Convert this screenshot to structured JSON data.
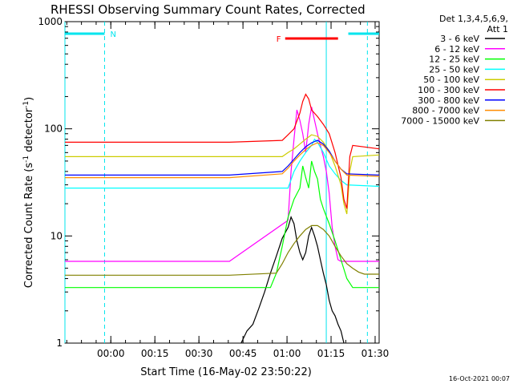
{
  "chart_data": {
    "type": "line",
    "title": "RHESSI Observing Summary Count Rates, Corrected",
    "xlabel": "Start Time (16-May-02 23:50:22)",
    "ylabel": "Corrected Count Rate (s",
    "ylabel_sup1": "-1",
    "ylabel_mid": " detector",
    "ylabel_sup2": "-1",
    "ylabel_end": ")",
    "y_scale": "log",
    "ylim": [
      1,
      1000
    ],
    "y_ticks": [
      {
        "value": 1,
        "label": "1"
      },
      {
        "value": 10,
        "label": "10"
      },
      {
        "value": 100,
        "label": "100"
      },
      {
        "value": 1000,
        "label": "1000"
      }
    ],
    "x_unit": "minutes after 23:50:22",
    "xlim": [
      -6,
      101
    ],
    "x_ticks": [
      {
        "value": 9.63,
        "label": "00:00"
      },
      {
        "value": 24.63,
        "label": "00:15"
      },
      {
        "value": 39.63,
        "label": "00:30"
      },
      {
        "value": 54.63,
        "label": "00:45"
      },
      {
        "value": 69.63,
        "label": "01:00"
      },
      {
        "value": 84.63,
        "label": "01:15"
      },
      {
        "value": 99.63,
        "label": "01:30"
      }
    ],
    "legend_header": [
      "Det 1,3,4,5,6,9,",
      "Att 1"
    ],
    "legend_position": "right",
    "footer_date": "16-Oct-2021 00:07",
    "marker_N_label": "N",
    "marker_F_label": "F",
    "night_bars": [
      [
        -6,
        7.5
      ],
      [
        90.5,
        101
      ]
    ],
    "flare_bar": [
      69,
      87
    ],
    "vlines_solid": [
      -6,
      83
    ],
    "vlines_dashed": [
      7.5,
      97
    ],
    "series": [
      {
        "name": "3 - 6 keV",
        "color": "#000000",
        "points": [
          [
            54,
            1
          ],
          [
            56,
            1.3
          ],
          [
            58,
            1.5
          ],
          [
            60,
            2.1
          ],
          [
            62,
            3.0
          ],
          [
            64,
            4.5
          ],
          [
            66,
            6.5
          ],
          [
            68,
            9.5
          ],
          [
            70,
            12
          ],
          [
            71,
            15
          ],
          [
            72,
            13
          ],
          [
            73,
            9
          ],
          [
            74,
            7
          ],
          [
            75,
            6
          ],
          [
            76,
            7
          ],
          [
            77,
            10
          ],
          [
            78,
            12
          ],
          [
            79,
            10
          ],
          [
            80,
            8
          ],
          [
            81,
            6
          ],
          [
            82,
            4.5
          ],
          [
            83,
            3.5
          ],
          [
            84,
            2.5
          ],
          [
            85,
            2
          ],
          [
            86,
            1.8
          ],
          [
            87,
            1.5
          ],
          [
            88,
            1.3
          ],
          [
            89,
            1
          ]
        ]
      },
      {
        "name": "6 - 12 keV",
        "color": "#ff00ff",
        "points": [
          [
            -6,
            5.8
          ],
          [
            50,
            5.8
          ],
          [
            70,
            14
          ],
          [
            71,
            40
          ],
          [
            72,
            80
          ],
          [
            73,
            150
          ],
          [
            74,
            120
          ],
          [
            75,
            90
          ],
          [
            76,
            60
          ],
          [
            77,
            110
          ],
          [
            78,
            160
          ],
          [
            79,
            120
          ],
          [
            80,
            90
          ],
          [
            81,
            70
          ],
          [
            82,
            55
          ],
          [
            83,
            40
          ],
          [
            84,
            25
          ],
          [
            85,
            12
          ],
          [
            86,
            8
          ],
          [
            87,
            6
          ],
          [
            88,
            5.8
          ],
          [
            101,
            5.8
          ]
        ]
      },
      {
        "name": "12 - 25 keV",
        "color": "#00ff00",
        "points": [
          [
            -6,
            3.3
          ],
          [
            50,
            3.3
          ],
          [
            64,
            3.3
          ],
          [
            66,
            4.5
          ],
          [
            68,
            8
          ],
          [
            70,
            15
          ],
          [
            72,
            22
          ],
          [
            74,
            28
          ],
          [
            75,
            45
          ],
          [
            76,
            35
          ],
          [
            77,
            28
          ],
          [
            78,
            50
          ],
          [
            79,
            40
          ],
          [
            80,
            34
          ],
          [
            81,
            22
          ],
          [
            82,
            18
          ],
          [
            84,
            13
          ],
          [
            86,
            9
          ],
          [
            88,
            6
          ],
          [
            90,
            4
          ],
          [
            92,
            3.3
          ],
          [
            101,
            3.3
          ]
        ]
      },
      {
        "name": "25 - 50 keV",
        "color": "#00ffff",
        "points": [
          [
            -6,
            28
          ],
          [
            50,
            28
          ],
          [
            70,
            28
          ],
          [
            72,
            40
          ],
          [
            74,
            50
          ],
          [
            76,
            60
          ],
          [
            78,
            70
          ],
          [
            79,
            80
          ],
          [
            80,
            75
          ],
          [
            82,
            60
          ],
          [
            84,
            45
          ],
          [
            86,
            38
          ],
          [
            88,
            33
          ],
          [
            90,
            30
          ],
          [
            101,
            29
          ]
        ]
      },
      {
        "name": "50 - 100 keV",
        "color": "#cccc00",
        "points": [
          [
            -6,
            55
          ],
          [
            50,
            55
          ],
          [
            68,
            55
          ],
          [
            70,
            60
          ],
          [
            72,
            65
          ],
          [
            74,
            72
          ],
          [
            76,
            80
          ],
          [
            78,
            88
          ],
          [
            80,
            85
          ],
          [
            82,
            75
          ],
          [
            84,
            62
          ],
          [
            86,
            45
          ],
          [
            88,
            30
          ],
          [
            89,
            20
          ],
          [
            90,
            16
          ],
          [
            91,
            40
          ],
          [
            92,
            55
          ],
          [
            101,
            57
          ]
        ]
      },
      {
        "name": "100 - 300 keV",
        "color": "#ff0000",
        "points": [
          [
            -6,
            75
          ],
          [
            50,
            75
          ],
          [
            68,
            78
          ],
          [
            70,
            88
          ],
          [
            72,
            100
          ],
          [
            74,
            140
          ],
          [
            75,
            180
          ],
          [
            76,
            210
          ],
          [
            77,
            190
          ],
          [
            78,
            150
          ],
          [
            80,
            130
          ],
          [
            82,
            110
          ],
          [
            84,
            90
          ],
          [
            86,
            60
          ],
          [
            88,
            35
          ],
          [
            89,
            22
          ],
          [
            90,
            18
          ],
          [
            91,
            55
          ],
          [
            92,
            70
          ],
          [
            101,
            65
          ]
        ]
      },
      {
        "name": "300 - 800 keV",
        "color": "#0000ff",
        "points": [
          [
            -6,
            37
          ],
          [
            50,
            37
          ],
          [
            68,
            40
          ],
          [
            70,
            45
          ],
          [
            72,
            52
          ],
          [
            74,
            60
          ],
          [
            76,
            68
          ],
          [
            78,
            74
          ],
          [
            80,
            78
          ],
          [
            82,
            72
          ],
          [
            84,
            62
          ],
          [
            86,
            50
          ],
          [
            88,
            42
          ],
          [
            90,
            38
          ],
          [
            101,
            37
          ]
        ]
      },
      {
        "name": "800 - 7000 keV",
        "color": "#ff8c00",
        "points": [
          [
            -6,
            35
          ],
          [
            50,
            35
          ],
          [
            68,
            38
          ],
          [
            70,
            43
          ],
          [
            72,
            50
          ],
          [
            74,
            57
          ],
          [
            76,
            64
          ],
          [
            78,
            70
          ],
          [
            80,
            74
          ],
          [
            82,
            70
          ],
          [
            84,
            60
          ],
          [
            86,
            50
          ],
          [
            88,
            42
          ],
          [
            90,
            37
          ],
          [
            101,
            36
          ]
        ]
      },
      {
        "name": "7000 - 15000 keV",
        "color": "#808000",
        "points": [
          [
            -6,
            4.3
          ],
          [
            50,
            4.3
          ],
          [
            66,
            4.5
          ],
          [
            68,
            5.5
          ],
          [
            70,
            7
          ],
          [
            72,
            8.5
          ],
          [
            74,
            10
          ],
          [
            76,
            11.5
          ],
          [
            78,
            12.5
          ],
          [
            80,
            12.5
          ],
          [
            82,
            11.5
          ],
          [
            84,
            10
          ],
          [
            86,
            8
          ],
          [
            88,
            6.5
          ],
          [
            90,
            5.5
          ],
          [
            92,
            5
          ],
          [
            94,
            4.6
          ],
          [
            96,
            4.4
          ],
          [
            101,
            4.4
          ]
        ]
      }
    ]
  }
}
